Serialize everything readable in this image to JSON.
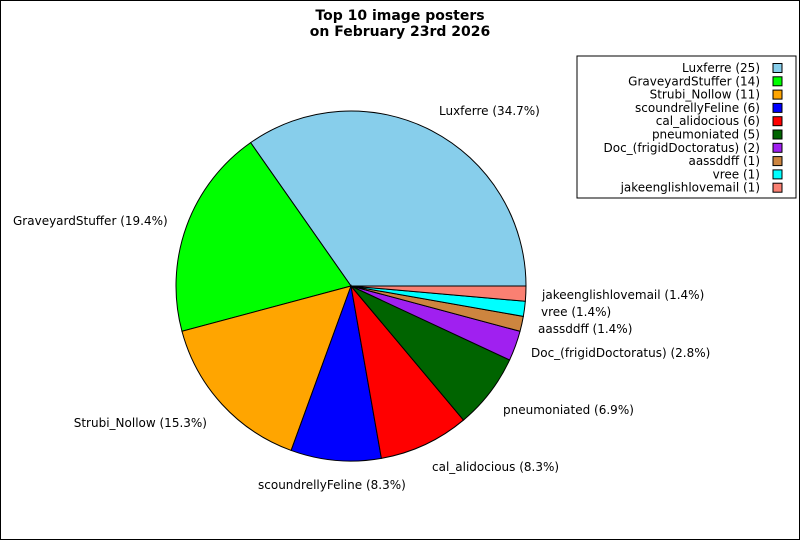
{
  "chart_data": {
    "type": "pie",
    "title": [
      "Top 10 image posters",
      "on February 23rd 2026"
    ],
    "categories": [
      "Luxferre",
      "GraveyardStuffer",
      "Strubi_Nollow",
      "scoundrellyFeline",
      "cal_alidocious",
      "pneumoniated",
      "Doc_(frigidDoctoratus)",
      "aassddff",
      "vree",
      "jakeenglishlovemail"
    ],
    "values": [
      25,
      14,
      11,
      6,
      6,
      5,
      2,
      1,
      1,
      1
    ],
    "percent_labels": [
      "Luxferre (34.7%)",
      "GraveyardStuffer (19.4%)",
      "Strubi_Nollow (15.3%)",
      "scoundrellyFeline (8.3%)",
      "cal_alidocious (8.3%)",
      "pneumoniated (6.9%)",
      "Doc_(frigidDoctoratus) (2.8%)",
      "aassddff (1.4%)",
      "vree (1.4%)",
      "jakeenglishlovemail (1.4%)"
    ],
    "legend_labels": [
      "Luxferre (25)",
      "GraveyardStuffer (14)",
      "Strubi_Nollow (11)",
      "scoundrellyFeline (6)",
      "cal_alidocious (6)",
      "pneumoniated (5)",
      "Doc_(frigidDoctoratus) (2)",
      "aassddff (1)",
      "vree (1)",
      "jakeenglishlovemail (1)"
    ],
    "colors": [
      "#87ceeb",
      "#00ff00",
      "#ffa500",
      "#0000ff",
      "#ff0000",
      "#006400",
      "#a020f0",
      "#cd853f",
      "#00ffff",
      "#fa8072"
    ],
    "legend": "top-right"
  }
}
